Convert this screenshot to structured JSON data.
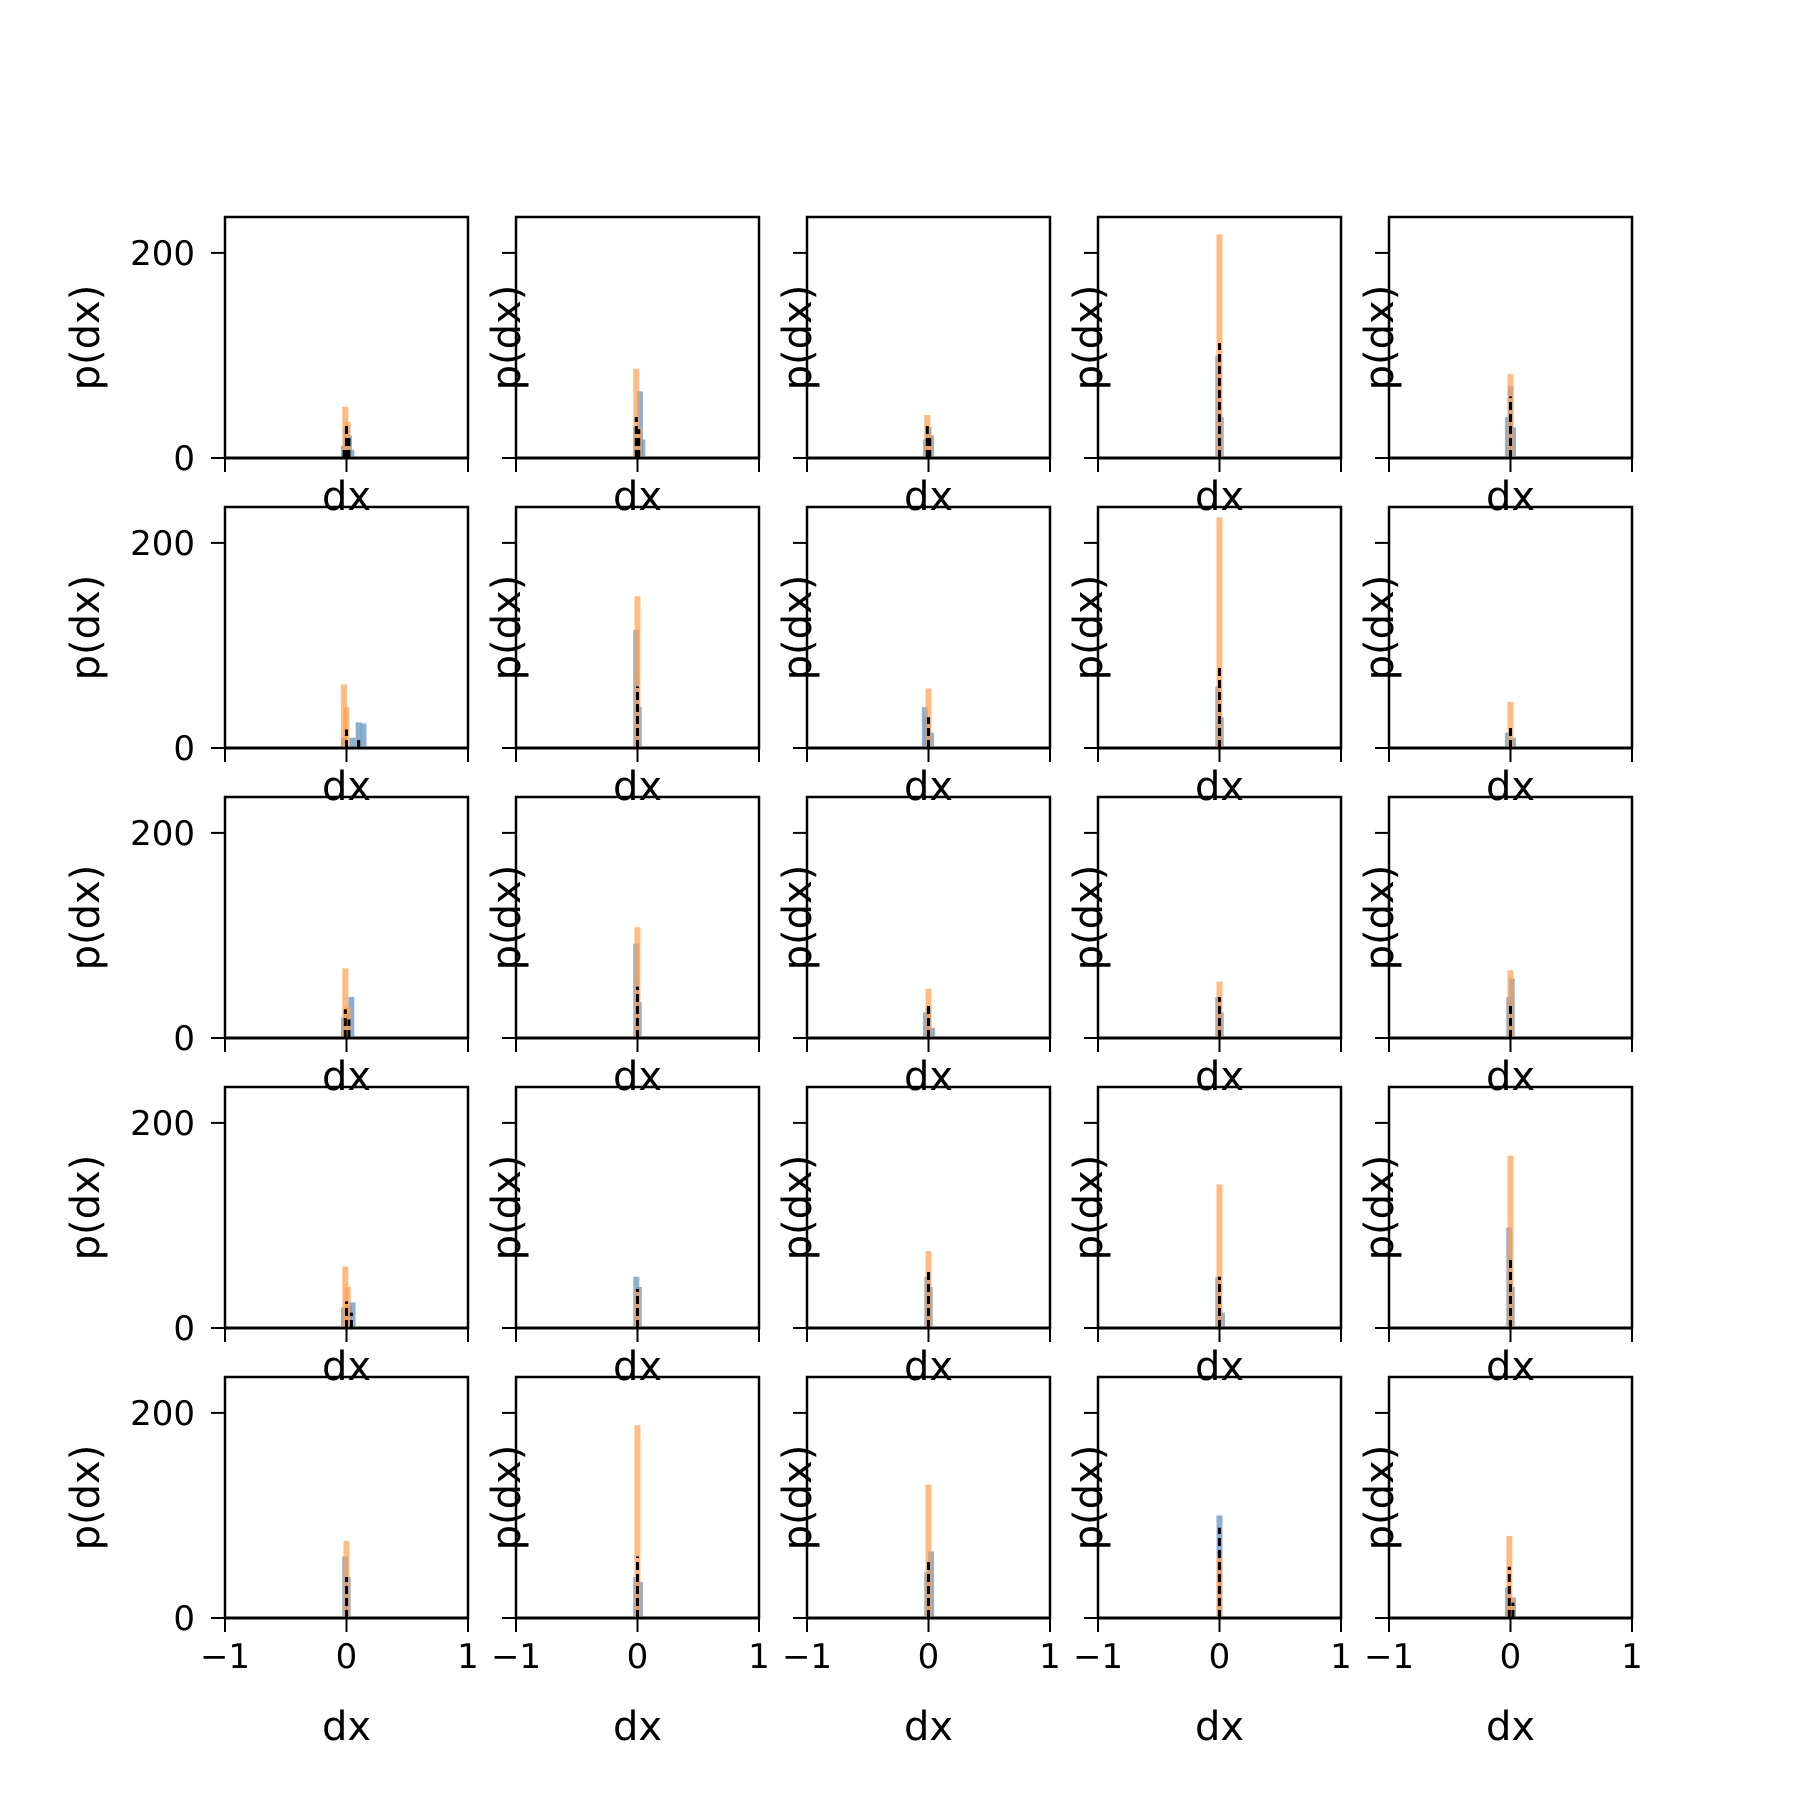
{
  "figure": {
    "background": "#ffffff"
  },
  "colors": {
    "blue": "#6f9bc7",
    "orange": "#ffa04d",
    "black": "#000000",
    "axis": "#000000"
  },
  "chart_data": {
    "type": "bar",
    "grid": {
      "rows": 5,
      "cols": 5
    },
    "xlabel": "dx",
    "ylabel": "p(dx)",
    "xlim": [
      -1,
      1
    ],
    "ylim": [
      0,
      235
    ],
    "xticks": [
      -1,
      0,
      1
    ],
    "xtick_labels": [
      "−1",
      "0",
      "1"
    ],
    "yticks": [
      0,
      200
    ],
    "ytick_labels": [
      "0",
      "200"
    ],
    "grid_lines": false,
    "series_styles": [
      {
        "key": "blue",
        "color": "#6f9bc7",
        "kind": "histogram"
      },
      {
        "key": "orange",
        "color": "#ffa04d",
        "kind": "histogram"
      },
      {
        "key": "black",
        "color": "#000000",
        "kind": "dashed-line"
      }
    ],
    "panels": [
      {
        "row": 0,
        "col": 0,
        "blue": [
          [
            -0.02,
            12
          ],
          [
            0.0,
            30
          ],
          [
            0.02,
            22
          ],
          [
            0.04,
            8
          ]
        ],
        "orange": [
          [
            -0.01,
            50
          ],
          [
            0.01,
            35
          ]
        ],
        "black": [
          [
            -0.02,
            10
          ],
          [
            0.0,
            35
          ],
          [
            0.02,
            20
          ]
        ]
      },
      {
        "row": 0,
        "col": 1,
        "blue": [
          [
            -0.01,
            30
          ],
          [
            0.02,
            65
          ],
          [
            0.04,
            18
          ]
        ],
        "orange": [
          [
            -0.01,
            87
          ],
          [
            0.01,
            30
          ]
        ],
        "black": [
          [
            -0.01,
            40
          ],
          [
            0.01,
            28
          ]
        ]
      },
      {
        "row": 0,
        "col": 2,
        "blue": [
          [
            -0.02,
            18
          ],
          [
            0.0,
            30
          ],
          [
            0.02,
            22
          ]
        ],
        "orange": [
          [
            -0.01,
            42
          ],
          [
            0.01,
            22
          ]
        ],
        "black": [
          [
            -0.01,
            35
          ],
          [
            0.01,
            20
          ]
        ]
      },
      {
        "row": 0,
        "col": 3,
        "blue": [
          [
            -0.01,
            100
          ],
          [
            0.01,
            40
          ]
        ],
        "orange": [
          [
            0.0,
            218
          ]
        ],
        "black": [
          [
            0.0,
            112
          ]
        ]
      },
      {
        "row": 0,
        "col": 4,
        "blue": [
          [
            -0.02,
            40
          ],
          [
            0.0,
            70
          ],
          [
            0.02,
            30
          ]
        ],
        "orange": [
          [
            0.0,
            82
          ]
        ],
        "black": [
          [
            0.0,
            60
          ]
        ]
      },
      {
        "row": 1,
        "col": 0,
        "blue": [
          [
            -0.02,
            10
          ],
          [
            0.05,
            10
          ],
          [
            0.1,
            25
          ],
          [
            0.14,
            24
          ]
        ],
        "orange": [
          [
            -0.02,
            62
          ],
          [
            0.0,
            40
          ]
        ],
        "black": [
          [
            0.0,
            18
          ],
          [
            0.1,
            8
          ]
        ]
      },
      {
        "row": 1,
        "col": 1,
        "blue": [
          [
            -0.01,
            115
          ],
          [
            0.01,
            40
          ]
        ],
        "orange": [
          [
            0.0,
            148
          ]
        ],
        "black": [
          [
            0.0,
            60
          ]
        ]
      },
      {
        "row": 1,
        "col": 2,
        "blue": [
          [
            -0.03,
            40
          ],
          [
            -0.01,
            30
          ],
          [
            0.02,
            15
          ]
        ],
        "orange": [
          [
            0.0,
            58
          ]
        ],
        "black": [
          [
            0.0,
            30
          ]
        ]
      },
      {
        "row": 1,
        "col": 3,
        "blue": [
          [
            -0.01,
            60
          ],
          [
            0.01,
            30
          ]
        ],
        "orange": [
          [
            0.0,
            225
          ]
        ],
        "black": [
          [
            0.0,
            80
          ]
        ]
      },
      {
        "row": 1,
        "col": 4,
        "blue": [
          [
            -0.02,
            15
          ],
          [
            0.02,
            10
          ]
        ],
        "orange": [
          [
            0.0,
            45
          ]
        ],
        "black": [
          [
            0.0,
            22
          ]
        ]
      },
      {
        "row": 2,
        "col": 0,
        "blue": [
          [
            -0.02,
            20
          ],
          [
            0.0,
            25
          ],
          [
            0.04,
            40
          ]
        ],
        "orange": [
          [
            -0.01,
            68
          ],
          [
            0.01,
            30
          ]
        ],
        "black": [
          [
            -0.01,
            28
          ],
          [
            0.02,
            18
          ]
        ]
      },
      {
        "row": 2,
        "col": 1,
        "blue": [
          [
            -0.01,
            92
          ],
          [
            0.01,
            35
          ]
        ],
        "orange": [
          [
            0.0,
            108
          ]
        ],
        "black": [
          [
            0.0,
            50
          ]
        ]
      },
      {
        "row": 2,
        "col": 2,
        "blue": [
          [
            -0.02,
            25
          ],
          [
            0.0,
            30
          ],
          [
            0.03,
            10
          ]
        ],
        "orange": [
          [
            0.0,
            48
          ]
        ],
        "black": [
          [
            0.0,
            35
          ]
        ]
      },
      {
        "row": 2,
        "col": 3,
        "blue": [
          [
            -0.01,
            40
          ],
          [
            0.01,
            25
          ]
        ],
        "orange": [
          [
            0.0,
            55
          ]
        ],
        "black": [
          [
            0.0,
            40
          ]
        ]
      },
      {
        "row": 2,
        "col": 4,
        "blue": [
          [
            -0.01,
            40
          ],
          [
            0.01,
            58
          ]
        ],
        "orange": [
          [
            0.0,
            66
          ]
        ],
        "black": [
          [
            0.0,
            35
          ]
        ]
      },
      {
        "row": 3,
        "col": 0,
        "blue": [
          [
            -0.02,
            20
          ],
          [
            0.02,
            22
          ],
          [
            0.05,
            25
          ]
        ],
        "orange": [
          [
            -0.01,
            60
          ],
          [
            0.01,
            40
          ]
        ],
        "black": [
          [
            0.0,
            26
          ],
          [
            0.04,
            15
          ]
        ]
      },
      {
        "row": 3,
        "col": 1,
        "blue": [
          [
            -0.01,
            50
          ],
          [
            0.01,
            40
          ]
        ],
        "orange": [
          [
            0.0,
            38
          ]
        ],
        "black": [
          [
            0.0,
            38
          ]
        ]
      },
      {
        "row": 3,
        "col": 2,
        "blue": [
          [
            -0.01,
            50
          ],
          [
            0.01,
            40
          ]
        ],
        "orange": [
          [
            0.0,
            75
          ]
        ],
        "black": [
          [
            0.0,
            55
          ]
        ]
      },
      {
        "row": 3,
        "col": 3,
        "blue": [
          [
            -0.01,
            50
          ],
          [
            0.02,
            15
          ]
        ],
        "orange": [
          [
            0.0,
            140
          ]
        ],
        "black": [
          [
            0.0,
            50
          ]
        ]
      },
      {
        "row": 3,
        "col": 4,
        "blue": [
          [
            -0.01,
            98
          ],
          [
            0.01,
            40
          ]
        ],
        "orange": [
          [
            0.0,
            168
          ]
        ],
        "black": [
          [
            0.0,
            68
          ]
        ]
      },
      {
        "row": 4,
        "col": 0,
        "blue": [
          [
            -0.01,
            60
          ],
          [
            0.01,
            40
          ]
        ],
        "orange": [
          [
            0.0,
            75
          ]
        ],
        "black": [
          [
            0.0,
            40
          ]
        ]
      },
      {
        "row": 4,
        "col": 1,
        "blue": [
          [
            -0.01,
            40
          ],
          [
            0.02,
            35
          ]
        ],
        "orange": [
          [
            0.0,
            188
          ]
        ],
        "black": [
          [
            0.0,
            60
          ]
        ]
      },
      {
        "row": 4,
        "col": 2,
        "blue": [
          [
            -0.01,
            45
          ],
          [
            0.02,
            65
          ]
        ],
        "orange": [
          [
            0.0,
            130
          ]
        ],
        "black": [
          [
            0.0,
            55
          ]
        ]
      },
      {
        "row": 4,
        "col": 3,
        "blue": [
          [
            0.0,
            100
          ]
        ],
        "orange": [
          [
            0.0,
            60
          ]
        ],
        "black": [
          [
            0.0,
            88
          ]
        ]
      },
      {
        "row": 4,
        "col": 4,
        "blue": [
          [
            -0.02,
            30
          ],
          [
            0.02,
            20
          ]
        ],
        "orange": [
          [
            -0.01,
            80
          ],
          [
            0.01,
            20
          ]
        ],
        "black": [
          [
            -0.01,
            50
          ],
          [
            0.02,
            15
          ]
        ]
      }
    ]
  }
}
